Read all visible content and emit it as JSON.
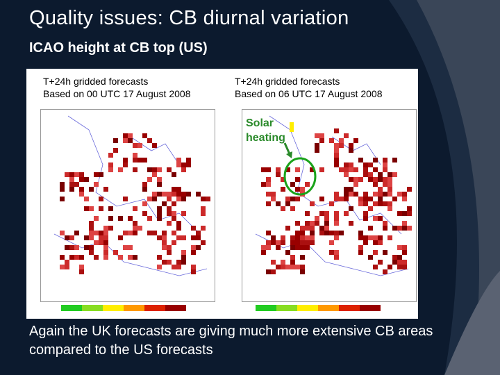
{
  "slide": {
    "title": "Quality issues: CB diurnal variation",
    "subtitle": "ICAO height at CB top (US)",
    "caption": "Again the UK forecasts are giving much more extensive CB areas compared to the US forecasts"
  },
  "panels": [
    {
      "line1": "T+24h gridded forecasts",
      "line2": "Based on 00 UTC 17 August 2008"
    },
    {
      "line1": "T+24h gridded forecasts",
      "line2": "Based on 06 UTC 17 August 2008"
    }
  ],
  "annotation": {
    "line1": "Solar",
    "line2": "heating",
    "color": "#2a8a2a"
  },
  "colors": {
    "background": "#0c1a2e",
    "scale": [
      "#22cc22",
      "#88dd22",
      "#ffee00",
      "#ff9900",
      "#dd2200",
      "#990000"
    ]
  }
}
